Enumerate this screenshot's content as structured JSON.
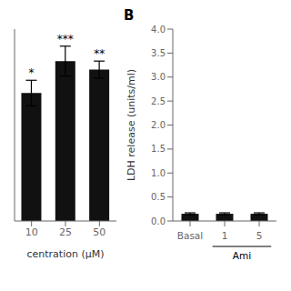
{
  "chart_data": [
    {
      "type": "bar",
      "categories": [
        "10",
        "25",
        "50"
      ],
      "values": [
        3.0,
        3.75,
        3.55
      ],
      "errors": [
        0.3,
        0.35,
        0.2
      ],
      "color": "#111111",
      "annotations": [
        "*",
        "***",
        "**"
      ],
      "xlabel": "centration (μM)",
      "ylim": [
        0,
        4.5
      ],
      "tick_labels": "x"
    },
    {
      "type": "bar",
      "title": "B",
      "categories": [
        "Basal",
        "1",
        "5"
      ],
      "values": [
        0.15,
        0.15,
        0.15
      ],
      "errors": [
        0.02,
        0.02,
        0.02
      ],
      "color": "#111111",
      "ylim": [
        0,
        4.0
      ],
      "yticks": [
        {
          "value": 0,
          "label": "0.0"
        },
        0.5,
        {
          "value": 1,
          "label": "1.0"
        },
        1.5,
        {
          "value": 2,
          "label": "2.0"
        },
        2.5,
        {
          "value": 3,
          "label": "3.0"
        },
        3.5,
        {
          "value": 4,
          "label": "4.0"
        }
      ],
      "ylabel": "LDH release (units/ml)",
      "annotations": [
        {
          "text": "Ami",
          "categories": [
            "1",
            "5"
          ]
        }
      ]
    }
  ]
}
